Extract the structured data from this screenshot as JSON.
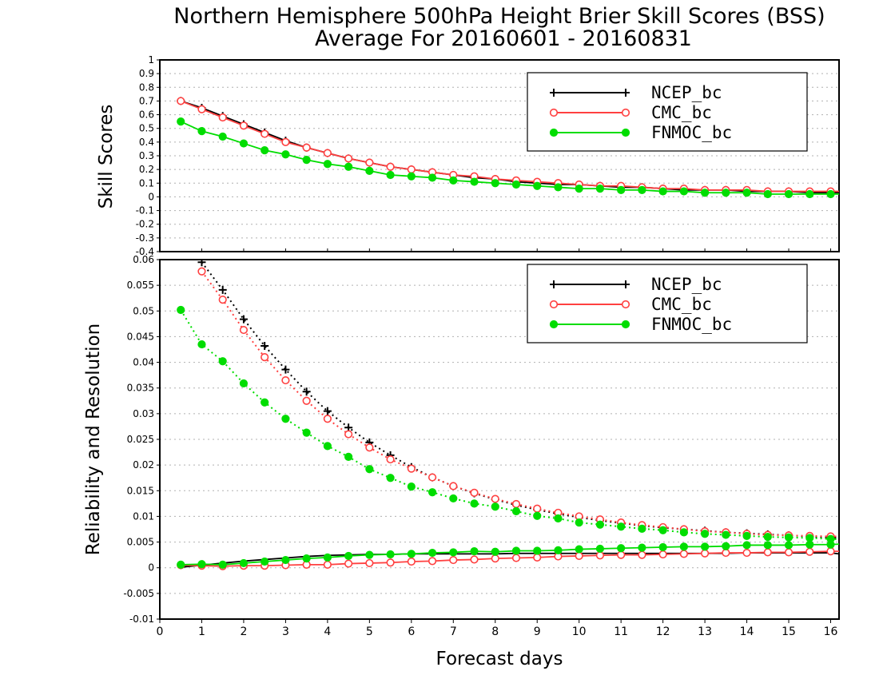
{
  "chart_data": [
    {
      "type": "line",
      "title": "Northern Hemisphere 500hPa Height Brier Skill Scores (BSS)",
      "subtitle": "Average For 20160601 - 20160831",
      "ylabel": "Skill Scores",
      "xlabel": "",
      "xlim": [
        0,
        16.2
      ],
      "ylim": [
        -0.4,
        1
      ],
      "yticks": [
        "1",
        "0.9",
        "0.8",
        "0.7",
        "0.6",
        "0.5",
        "0.4",
        "0.3",
        "0.2",
        "0.1",
        "0",
        "-0.1",
        "-0.2",
        "-0.3",
        "-0.4"
      ],
      "grid": true,
      "legend_position": "top-right",
      "x": [
        0.5,
        1,
        1.5,
        2,
        2.5,
        3,
        3.5,
        4,
        4.5,
        5,
        5.5,
        6,
        6.5,
        7,
        7.5,
        8,
        8.5,
        9,
        9.5,
        10,
        10.5,
        11,
        11.5,
        12,
        12.5,
        13,
        13.5,
        14,
        14.5,
        15,
        15.5,
        16,
        16.2
      ],
      "series": [
        {
          "name": "NCEP_bc",
          "color": "#000000",
          "marker": "plus",
          "values": [
            0.7,
            0.65,
            0.59,
            0.53,
            0.47,
            0.41,
            0.36,
            0.32,
            0.28,
            0.25,
            0.22,
            0.2,
            0.18,
            0.16,
            0.14,
            0.13,
            0.11,
            0.1,
            0.09,
            0.09,
            0.08,
            0.07,
            0.07,
            0.06,
            0.05,
            0.05,
            0.05,
            0.04,
            0.04,
            0.04,
            0.03,
            0.03,
            0.03
          ]
        },
        {
          "name": "CMC_bc",
          "color": "#ff4040",
          "marker": "open-circle",
          "values": [
            0.7,
            0.64,
            0.58,
            0.52,
            0.46,
            0.4,
            0.36,
            0.32,
            0.28,
            0.25,
            0.22,
            0.2,
            0.18,
            0.16,
            0.15,
            0.13,
            0.12,
            0.11,
            0.1,
            0.09,
            0.08,
            0.08,
            0.07,
            0.06,
            0.06,
            0.05,
            0.05,
            0.05,
            0.04,
            0.04,
            0.04,
            0.04,
            0.04
          ]
        },
        {
          "name": "FNMOC_bc",
          "color": "#00dd00",
          "marker": "filled-circle",
          "values": [
            0.55,
            0.48,
            0.44,
            0.39,
            0.34,
            0.31,
            0.27,
            0.24,
            0.22,
            0.19,
            0.16,
            0.15,
            0.14,
            0.12,
            0.11,
            0.1,
            0.09,
            0.08,
            0.07,
            0.06,
            0.06,
            0.05,
            0.05,
            0.04,
            0.04,
            0.03,
            0.03,
            0.03,
            0.02,
            0.02,
            0.02,
            0.02,
            0.02
          ]
        }
      ]
    },
    {
      "type": "line",
      "title": "",
      "ylabel": "Reliability and Resolution",
      "xlabel": "Forecast days",
      "xlim": [
        0,
        16.2
      ],
      "ylim": [
        -0.01,
        0.06
      ],
      "yticks": [
        "0.06",
        "0.055",
        "0.05",
        "0.045",
        "0.04",
        "0.035",
        "0.03",
        "0.025",
        "0.02",
        "0.015",
        "0.01",
        "0.005",
        "0",
        "-0.005",
        "-0.01"
      ],
      "xticks": [
        "0",
        "1",
        "2",
        "3",
        "4",
        "5",
        "6",
        "7",
        "8",
        "9",
        "10",
        "11",
        "12",
        "13",
        "14",
        "15",
        "16"
      ],
      "grid": true,
      "legend_position": "top-right",
      "x": [
        0.5,
        1,
        1.5,
        2,
        2.5,
        3,
        3.5,
        4,
        4.5,
        5,
        5.5,
        6,
        6.5,
        7,
        7.5,
        8,
        8.5,
        9,
        9.5,
        10,
        10.5,
        11,
        11.5,
        12,
        12.5,
        13,
        13.5,
        14,
        14.5,
        15,
        15.5,
        16,
        16.2
      ],
      "series": [
        {
          "name": "NCEP_bc",
          "color": "#000000",
          "marker": "plus",
          "line": "dotted",
          "values": [
            null,
            0.0595,
            0.0541,
            0.0484,
            0.0432,
            0.0386,
            0.0343,
            0.0305,
            0.0273,
            0.0244,
            0.0219,
            0.0196,
            0.0176,
            0.0159,
            0.0145,
            0.0133,
            0.0122,
            0.0113,
            0.0105,
            0.0098,
            0.0092,
            0.0087,
            0.0082,
            0.0078,
            0.0075,
            0.0072,
            0.0069,
            0.0067,
            0.0065,
            0.0063,
            0.0061,
            0.0059,
            0.0058
          ]
        },
        {
          "name": "CMC_bc",
          "color": "#ff4040",
          "marker": "open-circle",
          "line": "dotted",
          "values": [
            null,
            0.0577,
            0.0522,
            0.0463,
            0.041,
            0.0365,
            0.0325,
            0.029,
            0.026,
            0.0234,
            0.0211,
            0.0193,
            0.0176,
            0.0159,
            0.0146,
            0.0134,
            0.0124,
            0.0115,
            0.0107,
            0.01,
            0.0094,
            0.0088,
            0.0083,
            0.0079,
            0.0075,
            0.0071,
            0.0069,
            0.0066,
            0.0064,
            0.0063,
            0.0062,
            0.0061,
            0.0061
          ]
        },
        {
          "name": "FNMOC_bc",
          "color": "#00dd00",
          "marker": "filled-circle",
          "line": "dotted",
          "values": [
            0.0502,
            0.0435,
            0.0402,
            0.0359,
            0.0322,
            0.029,
            0.0263,
            0.0237,
            0.0216,
            0.0192,
            0.0175,
            0.0158,
            0.0147,
            0.0135,
            0.0125,
            0.0119,
            0.011,
            0.0101,
            0.0096,
            0.0088,
            0.0084,
            0.008,
            0.0076,
            0.0073,
            0.0069,
            0.0066,
            0.0064,
            0.0062,
            0.006,
            0.0059,
            0.0058,
            0.0056,
            0.0055
          ]
        },
        {
          "name": "",
          "color": "#000000",
          "marker": "none",
          "line": "solid",
          "values": [
            0.0001,
            0.0005,
            0.0009,
            0.0013,
            0.0016,
            0.0019,
            0.0022,
            0.0024,
            0.0025,
            0.0026,
            0.0026,
            0.0027,
            0.0027,
            0.0027,
            0.0027,
            0.0027,
            0.0028,
            0.0028,
            0.0028,
            0.0028,
            0.0028,
            0.0028,
            0.0028,
            0.0028,
            0.0028,
            0.0028,
            0.0028,
            0.0029,
            0.0029,
            0.0029,
            0.0029,
            0.0029,
            0.0027
          ]
        },
        {
          "name": "",
          "color": "#ff4040",
          "marker": "open-circle",
          "line": "solid",
          "values": [
            0.0005,
            0.0004,
            0.0003,
            0.0004,
            0.0004,
            0.0005,
            0.0006,
            0.0006,
            0.0008,
            0.0009,
            0.001,
            0.0012,
            0.0013,
            0.0015,
            0.0016,
            0.0018,
            0.0019,
            0.002,
            0.0022,
            0.0023,
            0.0024,
            0.0025,
            0.0025,
            0.0026,
            0.0027,
            0.0028,
            0.0029,
            0.0029,
            0.003,
            0.003,
            0.0031,
            0.0032,
            0.0032
          ]
        },
        {
          "name": "",
          "color": "#00dd00",
          "marker": "filled-circle",
          "line": "solid",
          "values": [
            0.0006,
            0.0007,
            0.0006,
            0.0009,
            0.0012,
            0.0015,
            0.0018,
            0.002,
            0.0023,
            0.0025,
            0.0026,
            0.0027,
            0.0029,
            0.003,
            0.0032,
            0.0031,
            0.0033,
            0.0033,
            0.0034,
            0.0036,
            0.0037,
            0.0038,
            0.0039,
            0.004,
            0.0041,
            0.0041,
            0.0042,
            0.0044,
            0.0044,
            0.0044,
            0.0045,
            0.0045,
            0.0046
          ]
        }
      ]
    }
  ]
}
